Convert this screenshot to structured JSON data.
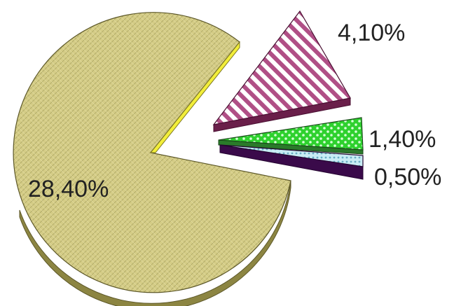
{
  "chart_data": {
    "type": "pie",
    "style": "3d-exploded",
    "title": "",
    "slices": [
      {
        "label": "28,40%",
        "value": 28.4,
        "color": "#d4cc86",
        "pattern": "fine-crosshatch",
        "exploded": false
      },
      {
        "label": "4,10%",
        "value": 4.1,
        "color": "#b04f86",
        "pattern": "diagonal-stripes",
        "exploded": true
      },
      {
        "label": "1,40%",
        "value": 1.4,
        "color": "#2ed12e",
        "pattern": "dots",
        "exploded": true
      },
      {
        "label": "0,50%",
        "value": 0.5,
        "color": "#9fd8e6",
        "pattern": "dots",
        "exploded": true
      }
    ],
    "legend": "none"
  }
}
